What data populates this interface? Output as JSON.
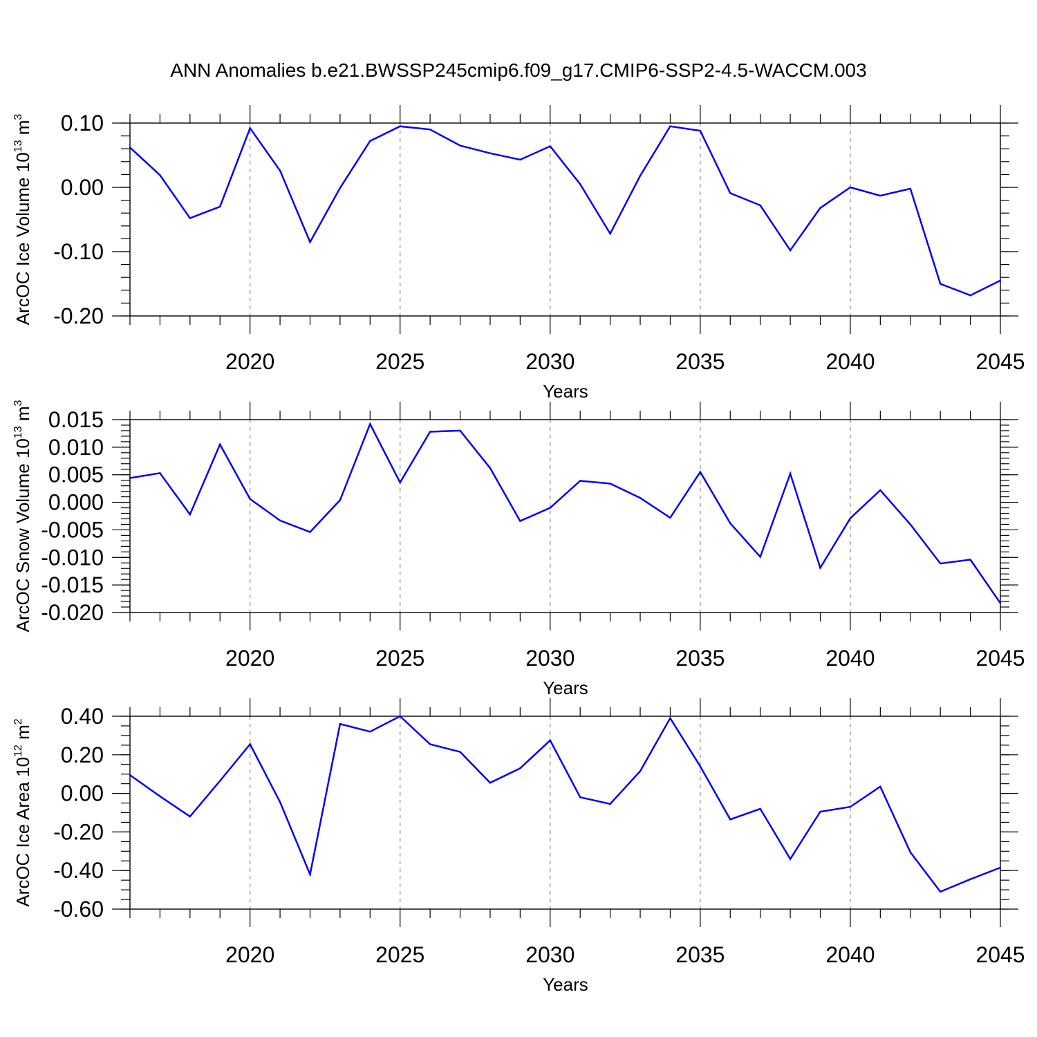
{
  "title": "ANN Anomalies b.e21.BWSSP245cmip6.f09_g17.CMIP6-SSP2-4.5-WACCM.003",
  "line_color": "#0000ff",
  "chart_data": [
    {
      "type": "line",
      "ylabel": {
        "text": "ArcOC Ice Volume 10",
        "sup": "13",
        "unit": " m",
        "unit_sup": "3"
      },
      "xlabel": "Years",
      "xlim": [
        2016,
        2045
      ],
      "ylim": [
        -0.2,
        0.1
      ],
      "yticks": [
        -0.2,
        -0.1,
        0.0,
        0.1
      ],
      "ytick_labels": [
        "-0.20",
        "-0.10",
        "0.00",
        "0.10"
      ],
      "y_minor_step": 0.02,
      "xticks": [
        2020,
        2025,
        2030,
        2035,
        2040,
        2045
      ],
      "xtick_labels": [
        "2020",
        "2025",
        "2030",
        "2035",
        "2040",
        "2045"
      ],
      "grid_x": [
        2020,
        2025,
        2030,
        2035,
        2040
      ],
      "x": [
        2016,
        2017,
        2018,
        2019,
        2020,
        2021,
        2022,
        2023,
        2024,
        2025,
        2026,
        2027,
        2028,
        2029,
        2030,
        2031,
        2032,
        2033,
        2034,
        2035,
        2036,
        2037,
        2038,
        2039,
        2040,
        2041,
        2042,
        2043,
        2044,
        2045
      ],
      "y": [
        0.062,
        0.019,
        -0.048,
        -0.03,
        0.092,
        0.026,
        -0.085,
        -0.001,
        0.072,
        0.095,
        0.09,
        0.065,
        0.053,
        0.043,
        0.064,
        0.005,
        -0.072,
        0.018,
        0.095,
        0.088,
        -0.009,
        -0.028,
        -0.098,
        -0.032,
        0.0,
        -0.013,
        -0.002,
        -0.15,
        -0.168,
        -0.145
      ]
    },
    {
      "type": "line",
      "ylabel": {
        "text": "ArcOC Snow Volume 10",
        "sup": "13",
        "unit": " m",
        "unit_sup": "3"
      },
      "xlabel": "Years",
      "xlim": [
        2016,
        2045
      ],
      "ylim": [
        -0.02,
        0.015
      ],
      "yticks": [
        -0.02,
        -0.015,
        -0.01,
        -0.005,
        0.0,
        0.005,
        0.01,
        0.015
      ],
      "ytick_labels": [
        "-0.020",
        "-0.015",
        "-0.010",
        "-0.005",
        "0.000",
        "0.005",
        "0.010",
        "0.015"
      ],
      "y_minor_step": 0.001,
      "xticks": [
        2020,
        2025,
        2030,
        2035,
        2040,
        2045
      ],
      "xtick_labels": [
        "2020",
        "2025",
        "2030",
        "2035",
        "2040",
        "2045"
      ],
      "grid_x": [
        2020,
        2025,
        2030,
        2035,
        2040
      ],
      "x": [
        2016,
        2017,
        2018,
        2019,
        2020,
        2021,
        2022,
        2023,
        2024,
        2025,
        2026,
        2027,
        2028,
        2029,
        2030,
        2031,
        2032,
        2033,
        2034,
        2035,
        2036,
        2037,
        2038,
        2039,
        2040,
        2041,
        2042,
        2043,
        2044,
        2045
      ],
      "y": [
        0.0044,
        0.0053,
        -0.0022,
        0.0105,
        0.0006,
        -0.0033,
        -0.0054,
        0.0004,
        0.0142,
        0.0036,
        0.0128,
        0.013,
        0.0062,
        -0.0034,
        -0.001,
        0.0039,
        0.0034,
        0.0008,
        -0.0028,
        0.0055,
        -0.0038,
        -0.0099,
        0.0052,
        -0.0119,
        -0.0029,
        0.0022,
        -0.004,
        -0.0111,
        -0.0104,
        -0.0183
      ]
    },
    {
      "type": "line",
      "ylabel": {
        "text": "ArcOC Ice Area 10",
        "sup": "12",
        "unit": " m",
        "unit_sup": "2"
      },
      "xlabel": "Years",
      "xlim": [
        2016,
        2045
      ],
      "ylim": [
        -0.6,
        0.4
      ],
      "yticks": [
        -0.6,
        -0.4,
        -0.2,
        0.0,
        0.2,
        0.4
      ],
      "ytick_labels": [
        "-0.60",
        "-0.40",
        "-0.20",
        "0.00",
        "0.20",
        "0.40"
      ],
      "y_minor_step": 0.05,
      "xticks": [
        2020,
        2025,
        2030,
        2035,
        2040,
        2045
      ],
      "xtick_labels": [
        "2020",
        "2025",
        "2030",
        "2035",
        "2040",
        "2045"
      ],
      "grid_x": [
        2020,
        2025,
        2030,
        2035,
        2040
      ],
      "x": [
        2016,
        2017,
        2018,
        2019,
        2020,
        2021,
        2022,
        2023,
        2024,
        2025,
        2026,
        2027,
        2028,
        2029,
        2030,
        2031,
        2032,
        2033,
        2034,
        2035,
        2036,
        2037,
        2038,
        2039,
        2040,
        2041,
        2042,
        2043,
        2044,
        2045
      ],
      "y": [
        0.095,
        -0.015,
        -0.12,
        0.065,
        0.255,
        -0.045,
        -0.42,
        0.36,
        0.32,
        0.4,
        0.255,
        0.215,
        0.055,
        0.13,
        0.275,
        -0.02,
        -0.055,
        0.115,
        0.39,
        0.14,
        -0.135,
        -0.08,
        -0.34,
        -0.095,
        -0.07,
        0.035,
        -0.305,
        -0.51,
        -0.445,
        -0.385
      ]
    }
  ]
}
